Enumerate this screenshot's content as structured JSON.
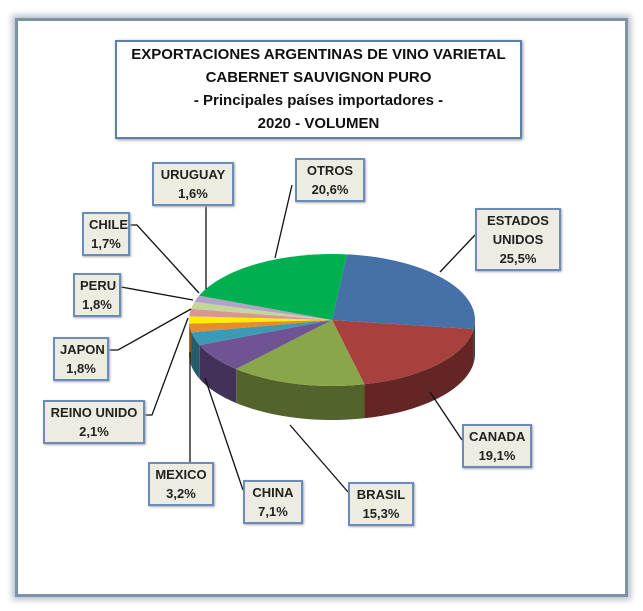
{
  "chart_data": {
    "type": "pie",
    "title": [
      "EXPORTACIONES ARGENTINAS DE VINO VARIETAL",
      "CABERNET SAUVIGNON PURO",
      "- Principales países importadores -",
      "2020 - VOLUMEN"
    ],
    "style": "3d-exploded-none",
    "slices": [
      {
        "label": "ESTADOS UNIDOS",
        "value": 25.5,
        "text": "25,5%",
        "color": "#4571a8"
      },
      {
        "label": "CANADA",
        "value": 19.1,
        "text": "19,1%",
        "color": "#a8403e"
      },
      {
        "label": "BRASIL",
        "value": 15.3,
        "text": "15,3%",
        "color": "#89a64a"
      },
      {
        "label": "CHINA",
        "value": 7.1,
        "text": "7,1%",
        "color": "#6f5393"
      },
      {
        "label": "MEXICO",
        "value": 3.2,
        "text": "3,2%",
        "color": "#3c9ab5"
      },
      {
        "label": "REINO UNIDO",
        "value": 2.1,
        "text": "2,1%",
        "color": "#e88a2e"
      },
      {
        "label": "JAPON",
        "value": 1.8,
        "text": "1,8%",
        "color": "#ffee00"
      },
      {
        "label": "PERU",
        "value": 1.8,
        "text": "1,8%",
        "color": "#d99694"
      },
      {
        "label": "CHILE",
        "value": 1.7,
        "text": "1,7%",
        "color": "#c3d69b"
      },
      {
        "label": "URUGUAY",
        "value": 1.6,
        "text": "1,6%",
        "color": "#b3a2c7"
      },
      {
        "label": "OTROS",
        "value": 20.6,
        "text": "20,6%",
        "color": "#00b050"
      }
    ]
  }
}
